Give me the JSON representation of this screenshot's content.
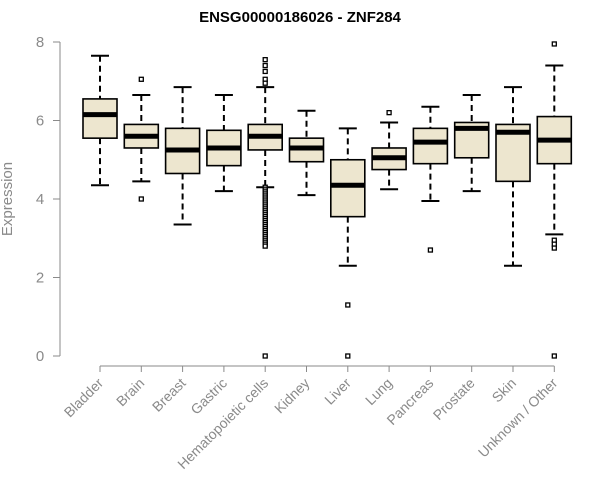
{
  "chart_data": {
    "type": "box",
    "title": "ENSG00000186026 - ZNF284",
    "ylabel": "Expression",
    "xlabel": "",
    "ylim": [
      0,
      8
    ],
    "yticks": [
      0,
      2,
      4,
      6,
      8
    ],
    "grid": false,
    "legend": "none",
    "colors": {
      "box_fill": "#ede6cf",
      "outline": "#000000",
      "axis": "#8a8a8a"
    },
    "categories": [
      "Bladder",
      "Brain",
      "Breast",
      "Gastric",
      "Hematopoietic cells",
      "Kidney",
      "Liver",
      "Lung",
      "Pancreas",
      "Prostate",
      "Skin",
      "Unknown / Other"
    ],
    "boxes": [
      {
        "min": 4.35,
        "q1": 5.55,
        "median": 6.15,
        "q3": 6.55,
        "max": 7.65,
        "outliers": []
      },
      {
        "min": 4.45,
        "q1": 5.3,
        "median": 5.6,
        "q3": 5.9,
        "max": 6.65,
        "outliers": [
          7.05,
          4.0
        ]
      },
      {
        "min": 3.35,
        "q1": 4.65,
        "median": 5.25,
        "q3": 5.8,
        "max": 6.85,
        "outliers": []
      },
      {
        "min": 4.2,
        "q1": 4.85,
        "median": 5.3,
        "q3": 5.75,
        "max": 6.65,
        "outliers": []
      },
      {
        "min": 4.3,
        "q1": 5.25,
        "median": 5.6,
        "q3": 5.9,
        "max": 6.85,
        "outliers": [
          7.55,
          7.4,
          7.25,
          7.05,
          6.95,
          4.3,
          4.25,
          4.2,
          4.15,
          4.1,
          4.05,
          4.0,
          3.95,
          3.9,
          3.85,
          3.8,
          3.75,
          3.7,
          3.65,
          3.6,
          3.55,
          3.5,
          3.45,
          3.4,
          3.35,
          3.3,
          3.25,
          3.2,
          3.15,
          3.1,
          3.05,
          3.0,
          2.95,
          2.9,
          2.85,
          2.8,
          0.0
        ]
      },
      {
        "min": 4.1,
        "q1": 4.95,
        "median": 5.3,
        "q3": 5.55,
        "max": 6.25,
        "outliers": []
      },
      {
        "min": 2.3,
        "q1": 3.55,
        "median": 4.35,
        "q3": 5.0,
        "max": 5.8,
        "outliers": [
          1.3,
          0.0
        ]
      },
      {
        "min": 4.25,
        "q1": 4.75,
        "median": 5.05,
        "q3": 5.3,
        "max": 5.95,
        "outliers": [
          6.2
        ]
      },
      {
        "min": 3.95,
        "q1": 4.9,
        "median": 5.45,
        "q3": 5.8,
        "max": 6.35,
        "outliers": [
          2.7
        ]
      },
      {
        "min": 4.2,
        "q1": 5.05,
        "median": 5.8,
        "q3": 5.95,
        "max": 6.65,
        "outliers": []
      },
      {
        "min": 2.3,
        "q1": 4.45,
        "median": 5.7,
        "q3": 5.9,
        "max": 6.85,
        "outliers": []
      },
      {
        "min": 3.1,
        "q1": 4.9,
        "median": 5.5,
        "q3": 6.1,
        "max": 7.4,
        "outliers": [
          7.95,
          2.95,
          2.85,
          2.75,
          0.0
        ]
      }
    ]
  }
}
